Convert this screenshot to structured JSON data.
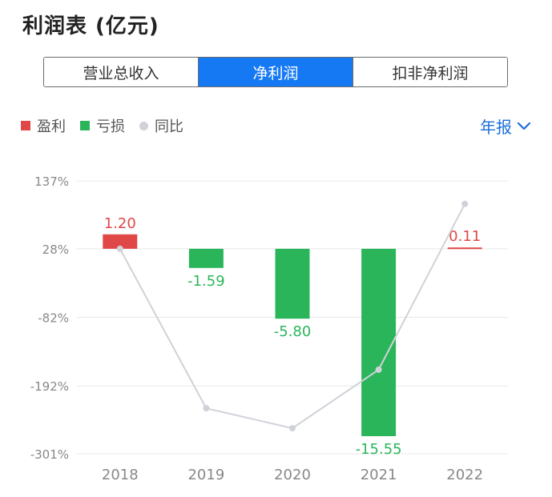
{
  "header": {
    "title": "利润表 (亿元)"
  },
  "tabs": [
    {
      "label": "营业总收入",
      "active": false
    },
    {
      "label": "净利润",
      "active": true
    },
    {
      "label": "扣非净利润",
      "active": false
    }
  ],
  "legend": {
    "profit": "盈利",
    "loss": "亏损",
    "yoy": "同比"
  },
  "period_selector": {
    "label": "年报",
    "icon": "chevron-down-icon"
  },
  "colors": {
    "accent": "#1679f4",
    "profit": "#e04848",
    "loss": "#2bb55b",
    "yoy_line": "#cfd2d9",
    "grid": "#e8e8e8",
    "axis_text": "#888888"
  },
  "chart_data": {
    "type": "bar",
    "categories": [
      "2018",
      "2019",
      "2020",
      "2021",
      "2022"
    ],
    "series": [
      {
        "name": "净利润",
        "values": [
          1.2,
          -1.59,
          -5.8,
          -15.55,
          0.11
        ],
        "labels": [
          "1.20",
          "-1.59",
          "-5.80",
          "-15.55",
          "0.11"
        ]
      },
      {
        "name": "同比",
        "values": [
          28,
          -228,
          -260,
          -166,
          100
        ]
      }
    ],
    "y_ticks": [
      "137%",
      "28%",
      "-82%",
      "-192%",
      "-301%"
    ],
    "y_tick_values": [
      137,
      28,
      -82,
      -192,
      -301
    ],
    "bar_range": [
      -15.55,
      1.2
    ],
    "grid": true,
    "legend_position": "top-left"
  }
}
